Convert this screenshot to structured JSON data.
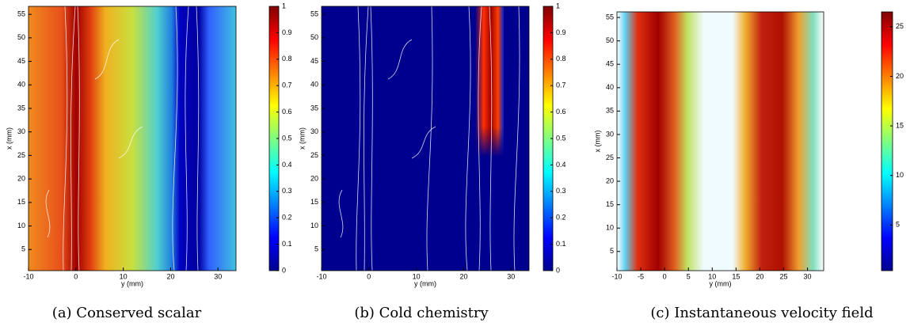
{
  "chart_data": [
    {
      "type": "heatmap",
      "caption": "(a) Conserved scalar",
      "xlabel": "y (mm)",
      "ylabel": "x (mm)",
      "xlim": [
        -10,
        33.8
      ],
      "ylim": [
        0.5,
        56.7
      ],
      "xticks": [
        -10,
        0,
        10,
        20,
        30
      ],
      "yticks": [
        5,
        10,
        15,
        20,
        25,
        30,
        35,
        40,
        45,
        50,
        55
      ],
      "clim": [
        0,
        1
      ],
      "cticks": [
        0,
        0.1,
        0.2,
        0.3,
        0.4,
        0.5,
        0.6,
        0.7,
        0.8,
        0.9,
        1
      ]
    },
    {
      "type": "heatmap",
      "caption": "(b) Cold chemistry",
      "xlabel": "y (mm)",
      "ylabel": "x (mm)",
      "xlim": [
        -10,
        33.8
      ],
      "ylim": [
        0.5,
        56.7
      ],
      "xticks": [
        -10,
        0,
        10,
        20,
        30
      ],
      "yticks": [
        5,
        10,
        15,
        20,
        25,
        30,
        35,
        40,
        45,
        50,
        55
      ],
      "clim": [
        0,
        1
      ],
      "cticks": [
        0,
        0.1,
        0.2,
        0.3,
        0.4,
        0.5,
        0.6,
        0.7,
        0.8,
        0.9,
        1
      ]
    },
    {
      "type": "quiver",
      "caption": "(c) Instantaneous velocity field",
      "xlabel": "y (mm)",
      "ylabel": "x (mm)",
      "xlim": [
        -10,
        33.4
      ],
      "ylim": [
        0.9,
        56.2
      ],
      "xticks": [
        -10,
        -5,
        0,
        5,
        10,
        15,
        20,
        25,
        30
      ],
      "yticks": [
        5,
        10,
        15,
        20,
        25,
        30,
        35,
        40,
        45,
        50,
        55
      ],
      "clim": [
        0.4,
        26.5
      ],
      "cticks": [
        5,
        10,
        15,
        20,
        25
      ]
    }
  ]
}
